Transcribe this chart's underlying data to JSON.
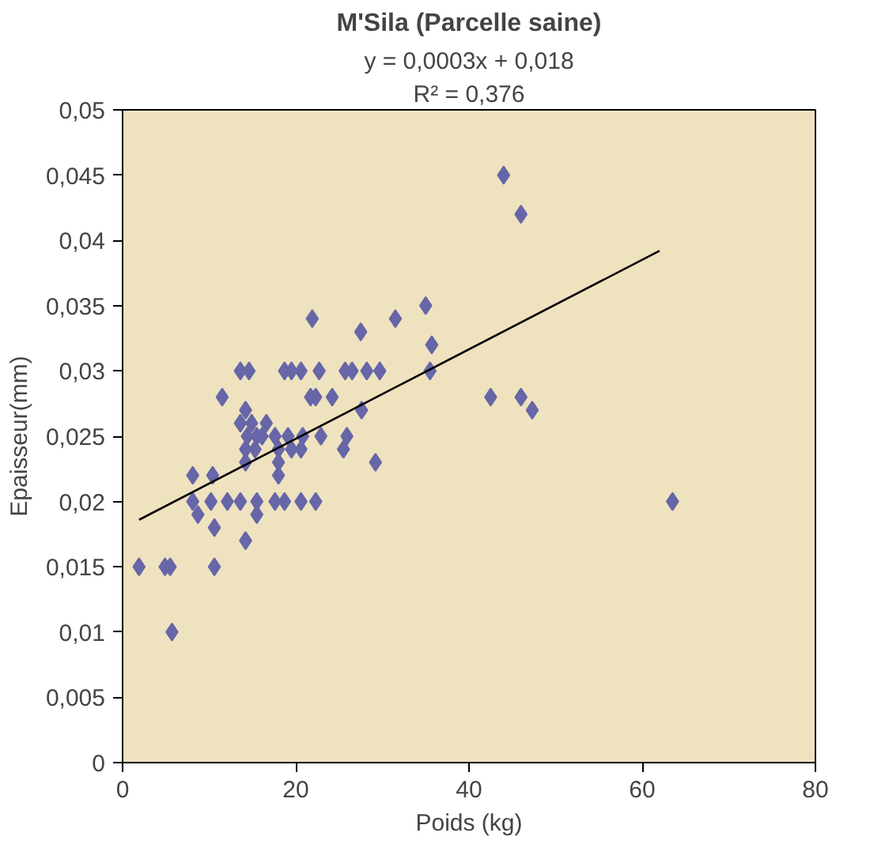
{
  "chart_data": {
    "type": "scatter",
    "title": "M'Sila (Parcelle saine)",
    "annotations": [
      "y = 0,0003x + 0,018",
      "R² = 0,376"
    ],
    "xlabel": "Poids (kg)",
    "ylabel": "Epaisseur(mm)",
    "xlim": [
      0,
      80
    ],
    "xticks": [
      0,
      20,
      40,
      60,
      80
    ],
    "ylim": [
      0,
      0.05
    ],
    "yticks": [
      {
        "value": 0,
        "label": "0"
      },
      {
        "value": 0.005,
        "label": "0,005"
      },
      {
        "value": 0.01,
        "label": "0,01"
      },
      {
        "value": 0.015,
        "label": "0,015"
      },
      {
        "value": 0.02,
        "label": "0,02"
      },
      {
        "value": 0.025,
        "label": "0,025"
      },
      {
        "value": 0.03,
        "label": "0,03"
      },
      {
        "value": 0.035,
        "label": "0,035"
      },
      {
        "value": 0.04,
        "label": "0,04"
      },
      {
        "value": 0.045,
        "label": "0,045"
      },
      {
        "value": 0.05,
        "label": "0,05"
      }
    ],
    "grid": false,
    "marker": "diamond",
    "series": [
      {
        "color": "#6666a8",
        "x": [
          13.6,
          14.6,
          18.7,
          19.5,
          20.6,
          22.7,
          25.7,
          26.5,
          28.2,
          29.7,
          35.5,
          11.5,
          21.7,
          22.3,
          24.2,
          14.2,
          27.6,
          13.6,
          14.9,
          16.6,
          14.4,
          15.5,
          16.1,
          17.6,
          19.1,
          20.8,
          22.9,
          25.9,
          14.2,
          15.3,
          18.0,
          19.5,
          20.6,
          25.5,
          14.2,
          18.0,
          29.2,
          8.1,
          10.4,
          18.0,
          8.1,
          10.2,
          12.1,
          13.6,
          15.5,
          17.6,
          18.7,
          20.6,
          22.3,
          8.7,
          15.5,
          10.6,
          14.2,
          1.9,
          4.9,
          5.5,
          10.6,
          5.7,
          44,
          46,
          35,
          35.7,
          42.5,
          46,
          47.3,
          63.5,
          21.9,
          27.5,
          31.5
        ],
        "values": [
          0.03,
          0.03,
          0.03,
          0.03,
          0.03,
          0.03,
          0.03,
          0.03,
          0.03,
          0.03,
          0.03,
          0.028,
          0.028,
          0.028,
          0.028,
          0.027,
          0.027,
          0.026,
          0.026,
          0.026,
          0.025,
          0.025,
          0.025,
          0.025,
          0.025,
          0.025,
          0.025,
          0.025,
          0.024,
          0.024,
          0.024,
          0.024,
          0.024,
          0.024,
          0.023,
          0.023,
          0.023,
          0.022,
          0.022,
          0.022,
          0.02,
          0.02,
          0.02,
          0.02,
          0.02,
          0.02,
          0.02,
          0.02,
          0.02,
          0.019,
          0.019,
          0.018,
          0.017,
          0.015,
          0.015,
          0.015,
          0.015,
          0.01,
          0.045,
          0.042,
          0.035,
          0.032,
          0.028,
          0.028,
          0.027,
          0.02,
          0.034,
          0.033,
          0.034
        ]
      },
      {
        "type": "line",
        "color": "#000000",
        "marker": "none",
        "x": [
          1.9,
          62
        ],
        "values": [
          0.0186,
          0.0392
        ]
      }
    ]
  }
}
